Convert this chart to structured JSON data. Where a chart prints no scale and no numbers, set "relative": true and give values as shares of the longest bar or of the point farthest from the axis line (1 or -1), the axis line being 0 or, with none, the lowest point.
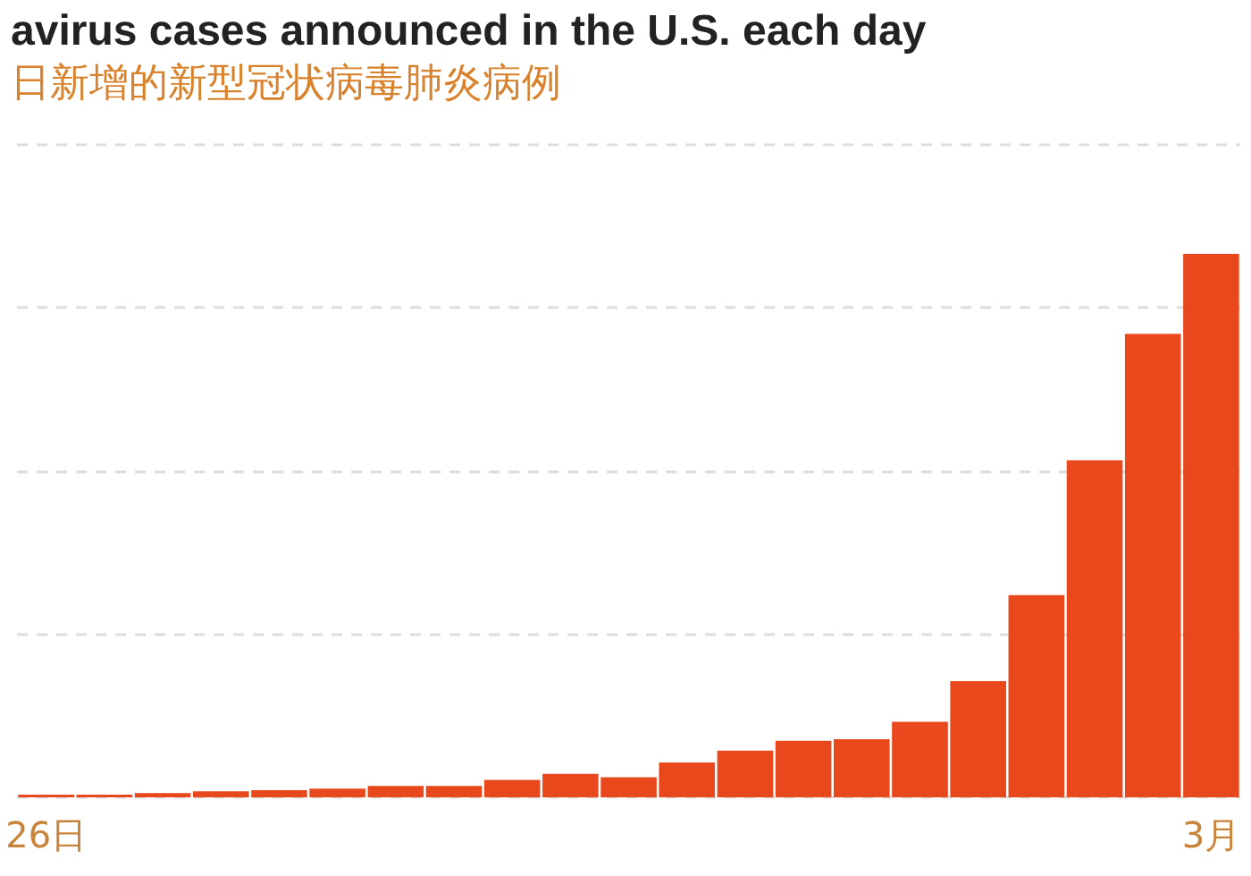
{
  "chart_data": {
    "type": "bar",
    "title": "avirus cases announced in the U.S. each day",
    "subtitle": "日新增的新型冠状病毒肺炎病例",
    "categories": [
      "26日",
      null,
      null,
      null,
      null,
      null,
      null,
      null,
      null,
      null,
      null,
      null,
      null,
      null,
      null,
      null,
      null,
      null,
      null,
      null,
      "3月"
    ],
    "relative": true,
    "color": "#e8481c",
    "values": [
      0.005,
      0.005,
      0.008,
      0.011,
      0.013,
      0.016,
      0.021,
      0.021,
      0.032,
      0.043,
      0.037,
      0.064,
      0.086,
      0.104,
      0.107,
      0.139,
      0.214,
      0.372,
      0.62,
      0.853,
      1
    ],
    "grid": "y",
    "legend": false
  }
}
